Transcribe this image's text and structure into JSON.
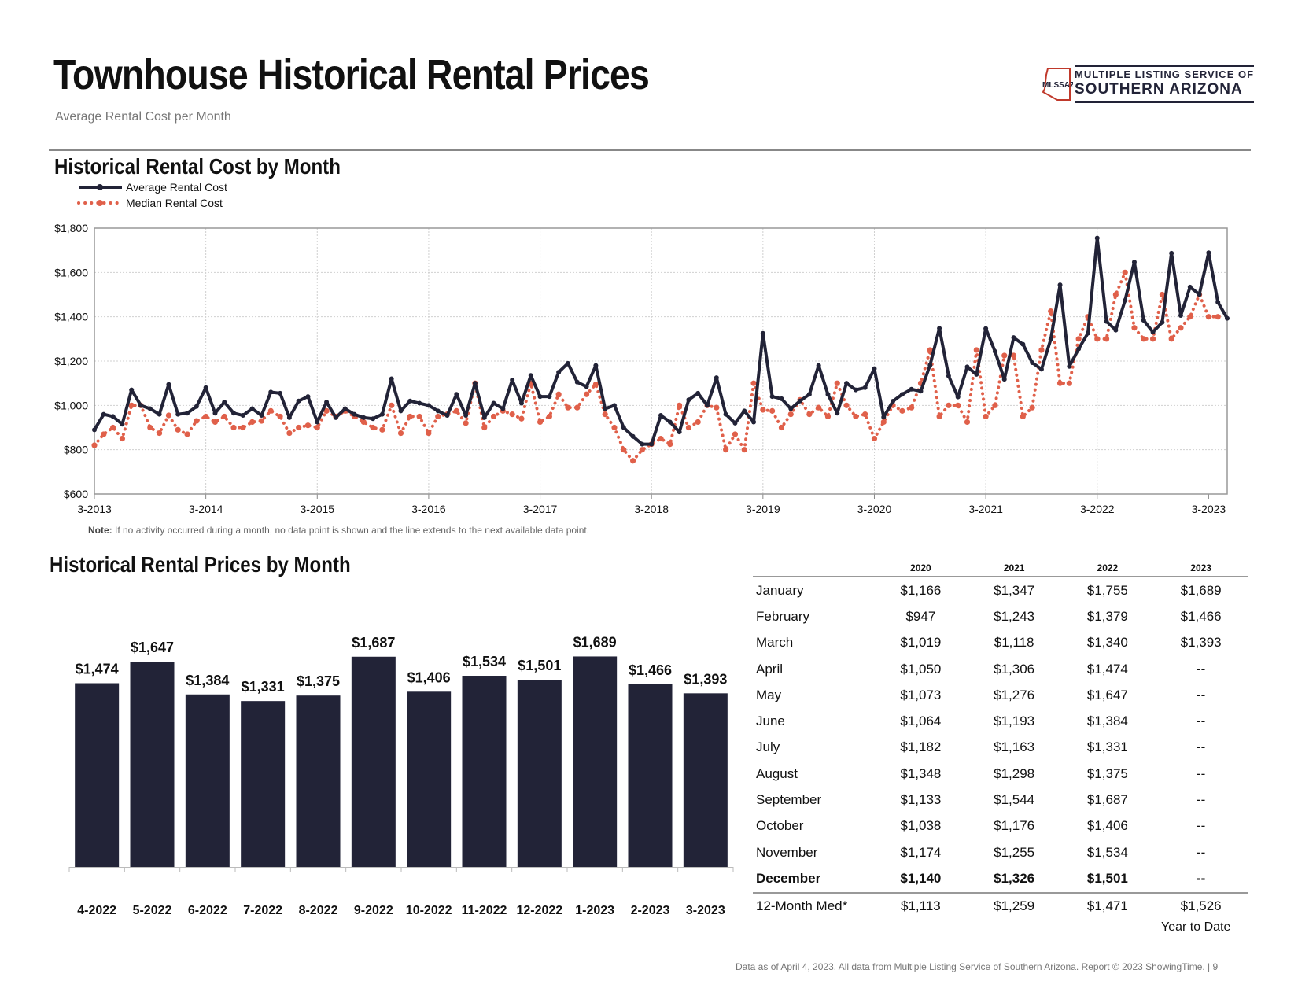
{
  "header": {
    "title": "Townhouse Historical Rental Prices",
    "subtitle": "Average Rental Cost per Month",
    "logo_abbrev": "MLSSAZ",
    "logo_line1": "MULTIPLE LISTING SERVICE OF",
    "logo_line2": "SOUTHERN ARIZONA"
  },
  "line_section": {
    "title": "Historical Rental Cost by Month",
    "note_label": "Note:",
    "note_text": " If no activity occurred during a month, no data point is shown and the line extends to the next available data point."
  },
  "bar_section": {
    "title": "Historical Rental Prices by Month"
  },
  "colors": {
    "navy": "#222337",
    "orange": "#e0604a",
    "grid": "#d0d0d0"
  },
  "chart_data": [
    {
      "type": "line",
      "title": "Historical Rental Cost by Month",
      "xlabel": "",
      "ylabel": "",
      "ylim": [
        600,
        1800
      ],
      "yticks": [
        "$600",
        "$800",
        "$1,000",
        "$1,200",
        "$1,400",
        "$1,600",
        "$1,800"
      ],
      "ytick_values": [
        600,
        800,
        1000,
        1200,
        1400,
        1600,
        1800
      ],
      "xtick_labels": [
        "3-2013",
        "3-2014",
        "3-2015",
        "3-2016",
        "3-2017",
        "3-2018",
        "3-2019",
        "3-2020",
        "3-2021",
        "3-2022",
        "3-2023"
      ],
      "x_start": "3-2013",
      "legend": "top-left",
      "series": [
        {
          "name": "Average Rental Cost",
          "style": "solid",
          "values": [
            890,
            960,
            950,
            915,
            1070,
            1000,
            985,
            960,
            1095,
            960,
            965,
            995,
            1080,
            965,
            1015,
            965,
            955,
            985,
            955,
            1060,
            1055,
            945,
            1020,
            1040,
            925,
            1015,
            945,
            985,
            960,
            945,
            940,
            960,
            1120,
            975,
            1020,
            1010,
            1000,
            975,
            955,
            1050,
            955,
            1100,
            945,
            1010,
            985,
            1115,
            1010,
            1135,
            1040,
            1040,
            1150,
            1190,
            1105,
            1085,
            1180,
            985,
            1000,
            900,
            860,
            825,
            825,
            955,
            925,
            880,
            1025,
            1055,
            1000,
            1125,
            960,
            920,
            975,
            925,
            1325,
            1040,
            1030,
            985,
            1020,
            1050,
            1180,
            1050,
            965,
            1100,
            1070,
            1080,
            1166,
            947,
            1019,
            1050,
            1073,
            1064,
            1182,
            1348,
            1133,
            1038,
            1174,
            1140,
            1347,
            1243,
            1118,
            1306,
            1276,
            1193,
            1163,
            1298,
            1544,
            1176,
            1255,
            1326,
            1755,
            1379,
            1340,
            1474,
            1647,
            1384,
            1331,
            1375,
            1687,
            1406,
            1534,
            1501,
            1689,
            1466,
            1393
          ]
        },
        {
          "name": "Median Rental Cost",
          "style": "dotted",
          "values": [
            820,
            870,
            900,
            850,
            1000,
            1000,
            900,
            875,
            955,
            890,
            870,
            930,
            950,
            925,
            950,
            900,
            900,
            925,
            930,
            975,
            950,
            875,
            900,
            910,
            900,
            975,
            950,
            975,
            950,
            925,
            900,
            890,
            1000,
            875,
            950,
            950,
            875,
            950,
            960,
            975,
            920,
            1100,
            900,
            950,
            975,
            960,
            940,
            1100,
            925,
            950,
            1050,
            990,
            990,
            1050,
            1095,
            960,
            900,
            800,
            750,
            800,
            825,
            850,
            825,
            1000,
            900,
            925,
            1000,
            990,
            800,
            870,
            800,
            1100,
            980,
            975,
            900,
            960,
            1025,
            960,
            990,
            950,
            1100,
            1000,
            950,
            960,
            850,
            925,
            1000,
            975,
            990,
            1100,
            1250,
            950,
            1000,
            1000,
            925,
            1250,
            950,
            1000,
            1225,
            1225,
            950,
            990,
            1250,
            1425,
            1100,
            1100,
            1300,
            1400,
            1300,
            1300,
            1500,
            1600,
            1350,
            1300,
            1300,
            1500,
            1300,
            1350,
            1400,
            1500,
            1400,
            1400
          ]
        }
      ]
    },
    {
      "type": "bar",
      "title": "Historical Rental Prices by Month",
      "categories": [
        "4-2022",
        "5-2022",
        "6-2022",
        "7-2022",
        "8-2022",
        "9-2022",
        "10-2022",
        "11-2022",
        "12-2022",
        "1-2023",
        "2-2023",
        "3-2023"
      ],
      "values": [
        1474,
        1647,
        1384,
        1331,
        1375,
        1687,
        1406,
        1534,
        1501,
        1689,
        1466,
        1393
      ],
      "labels": [
        "$1,474",
        "$1,647",
        "$1,384",
        "$1,331",
        "$1,375",
        "$1,687",
        "$1,406",
        "$1,534",
        "$1,501",
        "$1,689",
        "$1,466",
        "$1,393"
      ],
      "ylim": [
        0,
        1800
      ]
    },
    {
      "type": "table",
      "columns": [
        "",
        "2020",
        "2021",
        "2022",
        "2023"
      ],
      "rows": [
        [
          "January",
          "$1,166",
          "$1,347",
          "$1,755",
          "$1,689"
        ],
        [
          "February",
          "$947",
          "$1,243",
          "$1,379",
          "$1,466"
        ],
        [
          "March",
          "$1,019",
          "$1,118",
          "$1,340",
          "$1,393"
        ],
        [
          "April",
          "$1,050",
          "$1,306",
          "$1,474",
          "--"
        ],
        [
          "May",
          "$1,073",
          "$1,276",
          "$1,647",
          "--"
        ],
        [
          "June",
          "$1,064",
          "$1,193",
          "$1,384",
          "--"
        ],
        [
          "July",
          "$1,182",
          "$1,163",
          "$1,331",
          "--"
        ],
        [
          "August",
          "$1,348",
          "$1,298",
          "$1,375",
          "--"
        ],
        [
          "September",
          "$1,133",
          "$1,544",
          "$1,687",
          "--"
        ],
        [
          "October",
          "$1,038",
          "$1,176",
          "$1,406",
          "--"
        ],
        [
          "November",
          "$1,174",
          "$1,255",
          "$1,534",
          "--"
        ],
        [
          "December",
          "$1,140",
          "$1,326",
          "$1,501",
          "--"
        ]
      ],
      "highlight_row": "December",
      "summary_row": [
        "12-Month Med*",
        "$1,113",
        "$1,259",
        "$1,471",
        "$1,526"
      ],
      "summary_note": "Year to Date"
    }
  ],
  "footer": "Data as of April 4, 2023. All data from Multiple Listing Service of Southern Arizona. Report © 2023 ShowingTime. |  9"
}
